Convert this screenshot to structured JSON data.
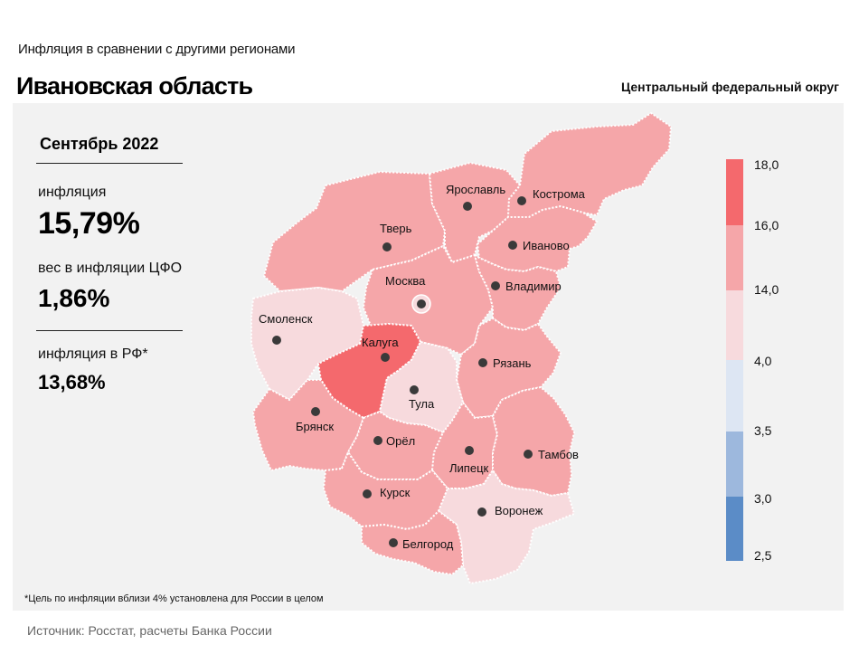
{
  "header": {
    "subtitle": "Инфляция  в сравнении  с другими  регионами",
    "title": "Ивановская область",
    "district": "Центральный федеральный округ"
  },
  "stats": {
    "period": "Сентябрь 2022",
    "inflation_label": "инфляция",
    "inflation_value": "15,79%",
    "weight_label": "вес в инфляции  ЦФО",
    "weight_value": "1,86%",
    "rf_label": "инфляция  в РФ*",
    "rf_value": "13,68%"
  },
  "legend": {
    "ticks": [
      "18,0",
      "16,0",
      "14,0",
      "4,0",
      "3,5",
      "3,0",
      "2,5"
    ],
    "colors": [
      "#f4696d",
      "#f5a6a9",
      "#f7dadd",
      "#dde6f3",
      "#9db8dd",
      "#5b8cc7"
    ]
  },
  "map": {
    "highlighted_region": "Иваново",
    "region_colors": {
      "high": "#f4696d",
      "mid": "#f5a6a9",
      "low": "#f7dadd"
    },
    "cities": [
      {
        "name": "Ярославль",
        "color": "mid"
      },
      {
        "name": "Кострома",
        "color": "mid"
      },
      {
        "name": "Иваново",
        "color": "mid"
      },
      {
        "name": "Тверь",
        "color": "mid"
      },
      {
        "name": "Москва",
        "color": "mid"
      },
      {
        "name": "Владимир",
        "color": "mid"
      },
      {
        "name": "Смоленск",
        "color": "low"
      },
      {
        "name": "Калуга",
        "color": "high"
      },
      {
        "name": "Рязань",
        "color": "mid"
      },
      {
        "name": "Тула",
        "color": "low"
      },
      {
        "name": "Брянск",
        "color": "mid"
      },
      {
        "name": "Орёл",
        "color": "mid"
      },
      {
        "name": "Липецк",
        "color": "mid"
      },
      {
        "name": "Тамбов",
        "color": "mid"
      },
      {
        "name": "Курск",
        "color": "mid"
      },
      {
        "name": "Воронеж",
        "color": "low"
      },
      {
        "name": "Белгород",
        "color": "mid"
      }
    ]
  },
  "footer": {
    "footnote": "*Цель по инфляции вблизи 4% установлена для России в целом",
    "source": "Источник: Росстат, расчеты Банка России"
  }
}
